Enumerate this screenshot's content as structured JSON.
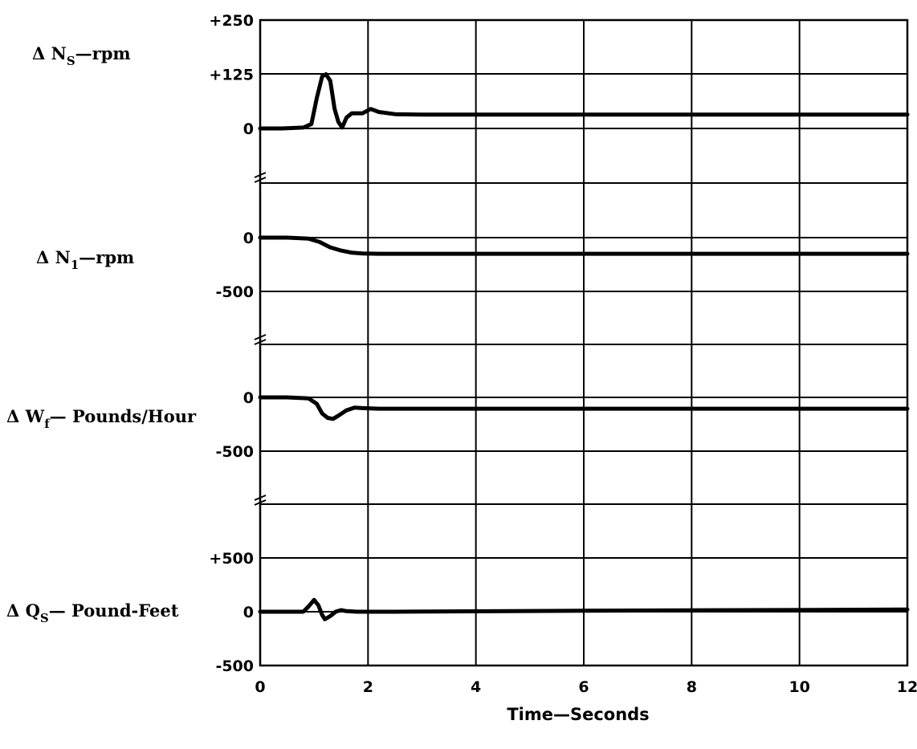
{
  "chart_data": {
    "type": "line",
    "xlabel": "Time—Seconds",
    "x_ticks": [
      "0",
      "2",
      "4",
      "6",
      "8",
      "10",
      "12"
    ],
    "xlim": [
      0,
      12
    ],
    "grid": true,
    "panels": [
      {
        "label_main": "Δ N",
        "label_sub": "S",
        "label_rest": "—rpm",
        "y_ticks": [
          "+250",
          "+125",
          "0"
        ],
        "ylim": [
          0,
          250
        ],
        "series": [
          {
            "x": [
              0,
              0.4,
              0.8,
              0.95,
              1.05,
              1.15,
              1.22,
              1.3,
              1.38,
              1.45,
              1.52,
              1.6,
              1.7,
              1.9,
              2.05,
              2.2,
              2.5,
              3,
              6,
              12
            ],
            "y": [
              0,
              0,
              2,
              10,
              70,
              120,
              125,
              110,
              45,
              15,
              2,
              25,
              35,
              35,
              45,
              38,
              33,
              32,
              32,
              32
            ]
          }
        ]
      },
      {
        "label_main": "Δ N",
        "label_sub": "1",
        "label_rest": "—rpm",
        "y_ticks": [
          "0",
          "-500"
        ],
        "ylim": [
          -500,
          0
        ],
        "series": [
          {
            "x": [
              0,
              0.5,
              0.9,
              1.1,
              1.3,
              1.5,
              1.7,
              1.9,
              2.2,
              3,
              6,
              12
            ],
            "y": [
              0,
              0,
              -10,
              -40,
              -90,
              -120,
              -140,
              -148,
              -150,
              -150,
              -150,
              -150
            ]
          }
        ]
      },
      {
        "label_main": "Δ W",
        "label_sub": "f",
        "label_rest": "— Pounds/Hour",
        "y_ticks": [
          "0",
          "-500"
        ],
        "ylim": [
          -500,
          0
        ],
        "series": [
          {
            "x": [
              0,
              0.5,
              0.9,
              1.05,
              1.15,
              1.25,
              1.35,
              1.45,
              1.6,
              1.75,
              1.9,
              2.2,
              3,
              12
            ],
            "y": [
              0,
              0,
              -10,
              -60,
              -150,
              -190,
              -200,
              -170,
              -120,
              -95,
              -100,
              -105,
              -105,
              -105
            ]
          }
        ]
      },
      {
        "label_main": "Δ Q",
        "label_sub": "S",
        "label_rest": "— Pound-Feet",
        "y_ticks": [
          "+500",
          "0",
          "-500"
        ],
        "ylim": [
          -500,
          500
        ],
        "series": [
          {
            "x": [
              0,
              0.4,
              0.8,
              0.9,
              1.0,
              1.08,
              1.15,
              1.2,
              1.3,
              1.4,
              1.5,
              1.6,
              1.8,
              2.5,
              6,
              12
            ],
            "y": [
              0,
              0,
              0,
              50,
              110,
              60,
              -30,
              -70,
              -40,
              0,
              15,
              5,
              0,
              0,
              10,
              20
            ]
          }
        ]
      }
    ]
  }
}
